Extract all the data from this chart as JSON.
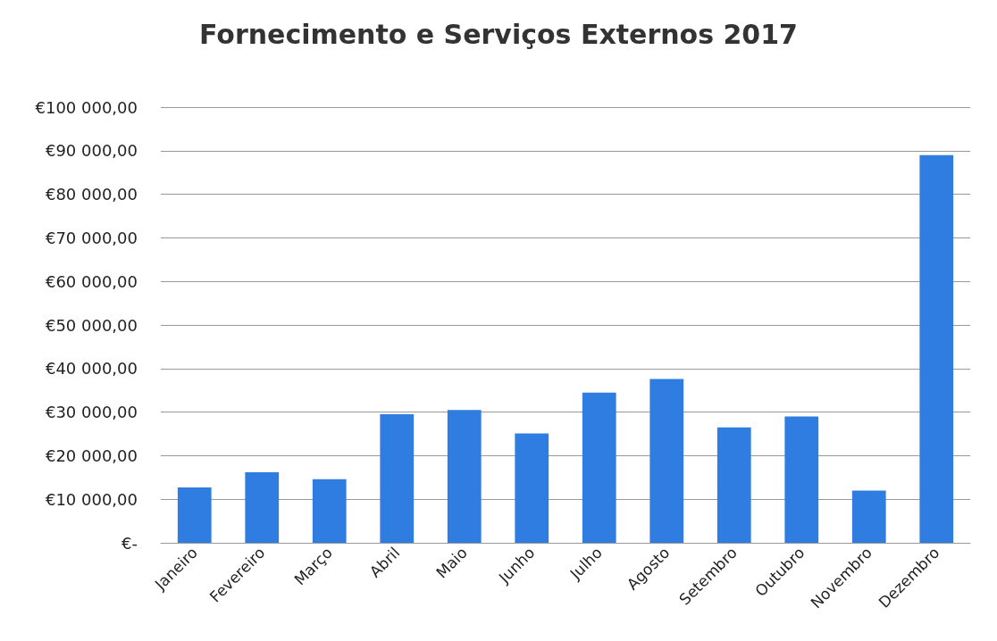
{
  "chart_data": {
    "type": "bar",
    "title": "Fornecimento e Serviços Externos 2017",
    "categories": [
      "Janeiro",
      "Fevereiro",
      "Março",
      "Abril",
      "Maio",
      "Junho",
      "Julho",
      "Agosto",
      "Setembro",
      "Outubro",
      "Novembro",
      "Dezembro"
    ],
    "values": [
      12700,
      16200,
      14600,
      29500,
      30500,
      25100,
      34500,
      37600,
      26500,
      29000,
      12000,
      89000
    ],
    "color": "#2f7de1",
    "ylim": [
      0,
      100000
    ],
    "yticks": [
      {
        "value": 0,
        "label": "€-"
      },
      {
        "value": 10000,
        "label": "€10 000,00"
      },
      {
        "value": 20000,
        "label": "€20 000,00"
      },
      {
        "value": 30000,
        "label": "€30 000,00"
      },
      {
        "value": 40000,
        "label": "€40 000,00"
      },
      {
        "value": 50000,
        "label": "€50 000,00"
      },
      {
        "value": 60000,
        "label": "€60 000,00"
      },
      {
        "value": 70000,
        "label": "€70 000,00"
      },
      {
        "value": 80000,
        "label": "€80 000,00"
      },
      {
        "value": 90000,
        "label": "€90 000,00"
      },
      {
        "value": 100000,
        "label": "€100 000,00"
      }
    ],
    "grid": "y"
  }
}
